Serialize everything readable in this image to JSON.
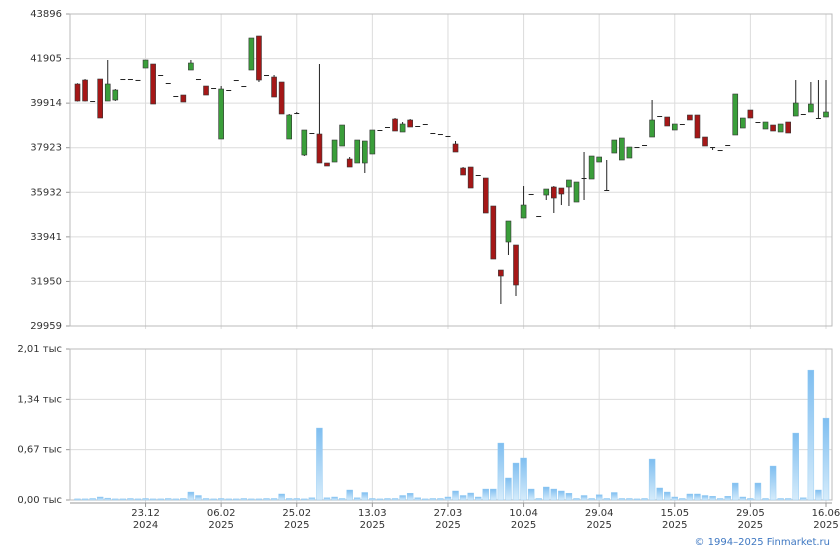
{
  "chart_data": [
    {
      "type": "candlestick",
      "ylim": [
        29959,
        43896
      ],
      "yticks": [
        29959,
        31950,
        33941,
        35932,
        37923,
        39914,
        41905,
        43896
      ],
      "grid": true,
      "up_color": "#3a9e3a",
      "down_color": "#a51717",
      "open": [
        40769,
        40947,
        40009,
        40992,
        40009,
        40054,
        40992,
        40992,
        40950,
        41483,
        41662,
        41171,
        40814,
        40233,
        40277,
        41394,
        40992,
        40679,
        40590,
        38312,
        40501,
        40947,
        40679,
        41394,
        42913,
        41171,
        41081,
        40858,
        38312,
        39429,
        37597,
        38580,
        38535,
        37240,
        37284,
        37999,
        37419,
        37240,
        37240,
        37642,
        38714,
        38848,
        39205,
        38625,
        39161,
        38893,
        38982,
        38580,
        38535,
        38446,
        38089,
        37016,
        37061,
        36704,
        36570,
        35319,
        32460,
        33711,
        33577,
        34783,
        35855,
        34872,
        35810,
        36168,
        36123,
        36168,
        35497,
        36570,
        36525,
        37284,
        36034,
        37686,
        37374,
        37463,
        37954,
        38044,
        38401,
        39339,
        39295,
        38714,
        38982,
        39384,
        39384,
        38401,
        37954,
        37820,
        38044,
        38491,
        38803,
        39607,
        39071,
        38759,
        38937,
        38625,
        39071,
        39339,
        39429,
        39518,
        39250,
        39295
      ],
      "high": [
        40800,
        40990,
        40009,
        40992,
        41841,
        40545,
        40992,
        40992,
        40950,
        41841,
        41662,
        41171,
        40814,
        40233,
        40277,
        41841,
        40992,
        40679,
        40590,
        40679,
        40501,
        40947,
        40679,
        42824,
        42913,
        41171,
        41171,
        40858,
        39429,
        39518,
        38714,
        38580,
        41662,
        37240,
        38267,
        38937,
        37508,
        38267,
        38223,
        38714,
        38714,
        38848,
        39250,
        39071,
        39205,
        38893,
        38982,
        38580,
        38535,
        38446,
        38223,
        37061,
        37061,
        36704,
        36570,
        35319,
        32460,
        34649,
        33577,
        36212,
        35855,
        34872,
        36078,
        36212,
        36123,
        36481,
        36391,
        37731,
        37552,
        37508,
        37374,
        38267,
        38357,
        37954,
        37954,
        38044,
        40054,
        39339,
        39295,
        38982,
        38982,
        39384,
        39384,
        38401,
        37954,
        37820,
        38044,
        40322,
        39250,
        39607,
        39071,
        39071,
        38937,
        38982,
        39071,
        40947,
        39429,
        40858,
        40947,
        40947
      ],
      "low": [
        39990,
        39990,
        40009,
        39250,
        40009,
        40009,
        40992,
        40992,
        40950,
        41483,
        39875,
        41171,
        40814,
        40233,
        39965,
        41394,
        40992,
        40277,
        40590,
        38312,
        40501,
        40947,
        40679,
        41394,
        40858,
        41171,
        40188,
        39429,
        38312,
        39429,
        37552,
        38580,
        37240,
        37106,
        37284,
        37999,
        37061,
        37240,
        36793,
        37642,
        38714,
        38848,
        38669,
        38625,
        38848,
        38893,
        38982,
        38580,
        38535,
        38446,
        37731,
        36704,
        36123,
        36704,
        35006,
        32951,
        30941,
        33130,
        31299,
        34783,
        35855,
        34872,
        35587,
        35006,
        35363,
        35319,
        35497,
        35587,
        36525,
        37284,
        36034,
        37686,
        37374,
        37463,
        37954,
        38044,
        38401,
        39339,
        38893,
        38714,
        38982,
        39161,
        38357,
        37999,
        37820,
        37820,
        38044,
        38491,
        38803,
        39250,
        39071,
        38759,
        38669,
        38625,
        38580,
        39339,
        39429,
        39518,
        39205,
        39295
      ],
      "close": [
        40009,
        40009,
        40009,
        39250,
        40769,
        40501,
        40992,
        40992,
        40950,
        41841,
        39875,
        41171,
        40814,
        40233,
        39965,
        41707,
        40992,
        40277,
        40590,
        40545,
        40501,
        40947,
        40679,
        42824,
        40947,
        41171,
        40188,
        39429,
        39384,
        39473,
        38714,
        38580,
        37240,
        37106,
        38267,
        38937,
        37061,
        38267,
        38223,
        38714,
        38714,
        38848,
        38669,
        38982,
        38848,
        38893,
        38982,
        38580,
        38535,
        38446,
        37731,
        36704,
        36123,
        36704,
        35006,
        32951,
        32192,
        34649,
        31790,
        35363,
        35855,
        34872,
        36078,
        35676,
        35855,
        36481,
        36391,
        36570,
        37552,
        37508,
        36034,
        38267,
        38357,
        37954,
        37954,
        38044,
        39161,
        39339,
        38893,
        38982,
        38982,
        39161,
        38357,
        37999,
        37954,
        37820,
        38044,
        40322,
        39250,
        39250,
        39071,
        39071,
        38669,
        38982,
        38580,
        39920,
        39429,
        39875,
        39250,
        39518
      ]
    },
    {
      "type": "bar",
      "ylim": [
        0,
        2010
      ],
      "yticks": [
        {
          "value": 0,
          "label": "0,00 тыс"
        },
        {
          "value": 670,
          "label": "0,67 тыс"
        },
        {
          "value": 1340,
          "label": "1,34 тыс"
        },
        {
          "value": 2010,
          "label": "2,01 тыс"
        }
      ],
      "grid": true,
      "color": "#8ec8f2",
      "categories": [
        null,
        null,
        null,
        null,
        null,
        null,
        null,
        null,
        null,
        "23.12",
        null,
        null,
        null,
        null,
        null,
        null,
        null,
        null,
        null,
        "06.02",
        null,
        null,
        null,
        null,
        null,
        null,
        null,
        null,
        null,
        "25.02",
        null,
        null,
        null,
        null,
        null,
        null,
        null,
        null,
        null,
        "13.03",
        null,
        null,
        null,
        null,
        null,
        null,
        null,
        null,
        null,
        "27.03",
        null,
        null,
        null,
        null,
        null,
        null,
        null,
        null,
        null,
        "10.04",
        null,
        null,
        null,
        null,
        null,
        null,
        null,
        null,
        null,
        "29.04",
        null,
        null,
        null,
        null,
        null,
        null,
        null,
        null,
        null,
        "15.05",
        null,
        null,
        null,
        null,
        null,
        null,
        null,
        null,
        null,
        "29.05",
        null,
        null,
        null,
        null,
        null,
        null,
        null,
        null,
        null,
        "16.06"
      ],
      "category_years": [
        null,
        null,
        null,
        null,
        null,
        null,
        null,
        null,
        null,
        "2024",
        null,
        null,
        null,
        null,
        null,
        null,
        null,
        null,
        null,
        "2025",
        null,
        null,
        null,
        null,
        null,
        null,
        null,
        null,
        null,
        "2025",
        null,
        null,
        null,
        null,
        null,
        null,
        null,
        null,
        null,
        "2025",
        null,
        null,
        null,
        null,
        null,
        null,
        null,
        null,
        null,
        "2025",
        null,
        null,
        null,
        null,
        null,
        null,
        null,
        null,
        null,
        "2025",
        null,
        null,
        null,
        null,
        null,
        null,
        null,
        null,
        null,
        "2025",
        null,
        null,
        null,
        null,
        null,
        null,
        null,
        null,
        null,
        "2025",
        null,
        null,
        null,
        null,
        null,
        null,
        null,
        null,
        null,
        "2025",
        null,
        null,
        null,
        null,
        null,
        null,
        null,
        null,
        null,
        "2025"
      ],
      "values": [
        15,
        15,
        20,
        40,
        25,
        15,
        15,
        20,
        15,
        20,
        15,
        15,
        20,
        15,
        20,
        106,
        60,
        20,
        15,
        20,
        15,
        15,
        20,
        15,
        15,
        20,
        20,
        80,
        20,
        20,
        15,
        30,
        958,
        30,
        40,
        20,
        133,
        30,
        100,
        20,
        15,
        20,
        20,
        60,
        90,
        30,
        15,
        20,
        20,
        40,
        120,
        60,
        93,
        40,
        146,
        146,
        758,
        293,
        492,
        559,
        146,
        20,
        173,
        146,
        120,
        90,
        20,
        60,
        20,
        70,
        20,
        100,
        20,
        20,
        15,
        20,
        545,
        160,
        106,
        40,
        20,
        80,
        80,
        60,
        50,
        20,
        50,
        226,
        40,
        20,
        226,
        20,
        452,
        20,
        20,
        891,
        30,
        1729,
        133,
        1090
      ]
    }
  ],
  "footer": "© 1994–2025 Finmarket.ru"
}
